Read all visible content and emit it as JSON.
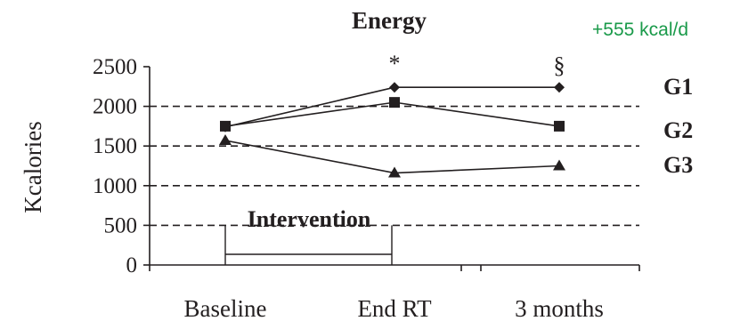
{
  "chart_data": {
    "type": "line",
    "title": "Energy",
    "ylabel": "Kcalories",
    "xlabel": "",
    "categories": [
      "Baseline",
      "End RT",
      "3 months"
    ],
    "ylim": [
      0,
      2500
    ],
    "yticks": [
      0,
      500,
      1000,
      1500,
      2000,
      2500
    ],
    "grid": "dashed horizontal lines at 500, 1000, 1500, 2000",
    "legend": "right, inline labels",
    "series": [
      {
        "name": "G1",
        "marker": "diamond",
        "values": [
          1740,
          2240,
          2240
        ]
      },
      {
        "name": "G2",
        "marker": "square",
        "values": [
          1750,
          2050,
          1750
        ]
      },
      {
        "name": "G3",
        "marker": "triangle",
        "values": [
          1570,
          1160,
          1250
        ]
      }
    ],
    "annotations": {
      "end_rt_mark": "*",
      "three_months_mark": "§",
      "intervention_label": "Intervention",
      "corner_note": "+555 kcal/d"
    }
  },
  "colors": {
    "ink": "#231f20",
    "note": "#1a9a4a"
  }
}
